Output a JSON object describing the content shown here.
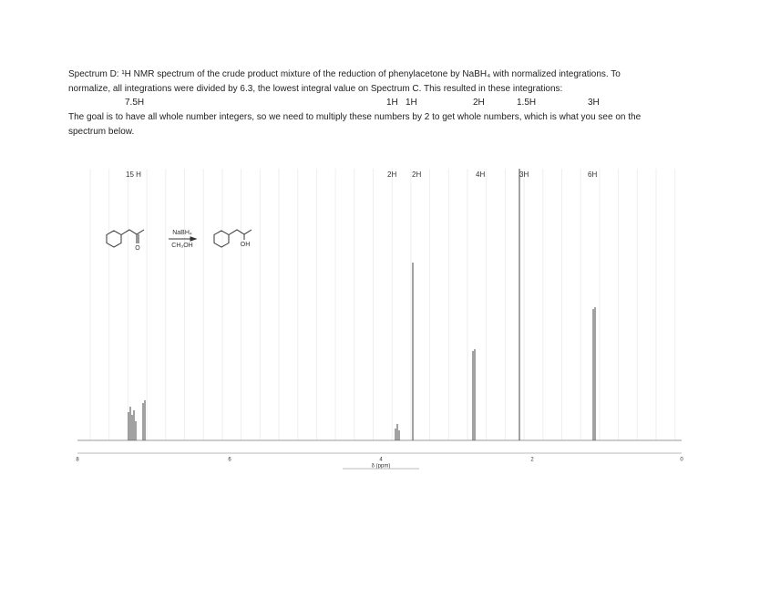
{
  "paragraph": {
    "lines": [
      "Spectrum D: ¹H NMR spectrum of the crude product mixture of the reduction of phenylacetone by NaBH₄ with normalized integrations. To",
      "normalize, all integrations were divided by 6.3, the lowest integral value on Spectrum C.  This resulted in these integrations:"
    ]
  },
  "integrations": [
    "7.5H",
    "1H",
    "1H",
    "2H",
    "1.5H",
    "3H"
  ],
  "paragraph2": {
    "lines": [
      "The goal is to have all whole number integers, so we need to multiply these numbers by 2 to get whole numbers, which is what you see on the",
      "spectrum below."
    ]
  },
  "spectrum": {
    "integrations": [
      "15 H",
      "2H",
      "2H",
      "4H",
      "3H",
      "6H"
    ],
    "axis_ticks": [
      "8",
      "6",
      "4",
      "2",
      "0"
    ],
    "axis_label": "δ (ppm)",
    "scheme": {
      "reagent_top": "NaBH₄",
      "reagent_bottom": "CH₃OH",
      "ketone_o": "O",
      "alcohol_oh": "OH"
    }
  }
}
